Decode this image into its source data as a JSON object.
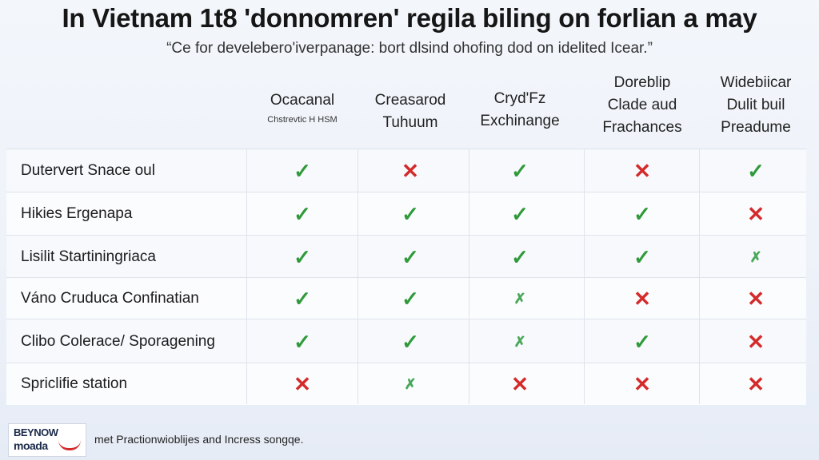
{
  "title": "In Vietnam 1t8 'donnomren' regila biling on forlian a may",
  "subtitle": "“Ce for develebero'iverpanage: bort dlsind ohofing dod on idelited Icear.”",
  "columns": [
    {
      "lines": [
        "Ocacanal"
      ],
      "small": "Chstrevtic H HSM"
    },
    {
      "lines": [
        "Creasarod",
        "Tuhuum"
      ],
      "small": ""
    },
    {
      "lines": [
        "Cryd'Fz",
        "Exchinange"
      ],
      "small": ""
    },
    {
      "lines": [
        "Doreblip",
        "Clade aud",
        "Frachances"
      ],
      "small": ""
    },
    {
      "lines": [
        "Widebiicar",
        "Dulit buil",
        "Preadume"
      ],
      "small": ""
    }
  ],
  "rows": [
    {
      "label": "Dutervert Snace oul",
      "marks": [
        "check",
        "cross",
        "check",
        "cross",
        "check"
      ]
    },
    {
      "label": "Hikies Ergenapa",
      "marks": [
        "check",
        "check",
        "check",
        "check",
        "cross"
      ]
    },
    {
      "label": "Lisilit Startiningriaca",
      "marks": [
        "check",
        "check",
        "check",
        "check",
        "partial"
      ]
    },
    {
      "label": "Váno Cruduca Confinatian",
      "marks": [
        "check",
        "check",
        "partial",
        "cross",
        "cross"
      ]
    },
    {
      "label": "Clibo Colerace/ Sporagening",
      "marks": [
        "check",
        "check",
        "partial",
        "check",
        "cross"
      ]
    },
    {
      "label": "Spriclifie station",
      "marks": [
        "cross",
        "partial",
        "cross",
        "cross",
        "cross"
      ]
    }
  ],
  "legend_glyphs": {
    "check": "✓",
    "cross": "✕",
    "partial": "✗"
  },
  "colors": {
    "check": "#2f9a3a",
    "cross": "#d42a2a",
    "partial": "#4aa85a"
  },
  "footer": {
    "logo_line1": "BEYNOW",
    "logo_line2": "moada",
    "text": "met Practionwioblijes and Incress songqe."
  }
}
